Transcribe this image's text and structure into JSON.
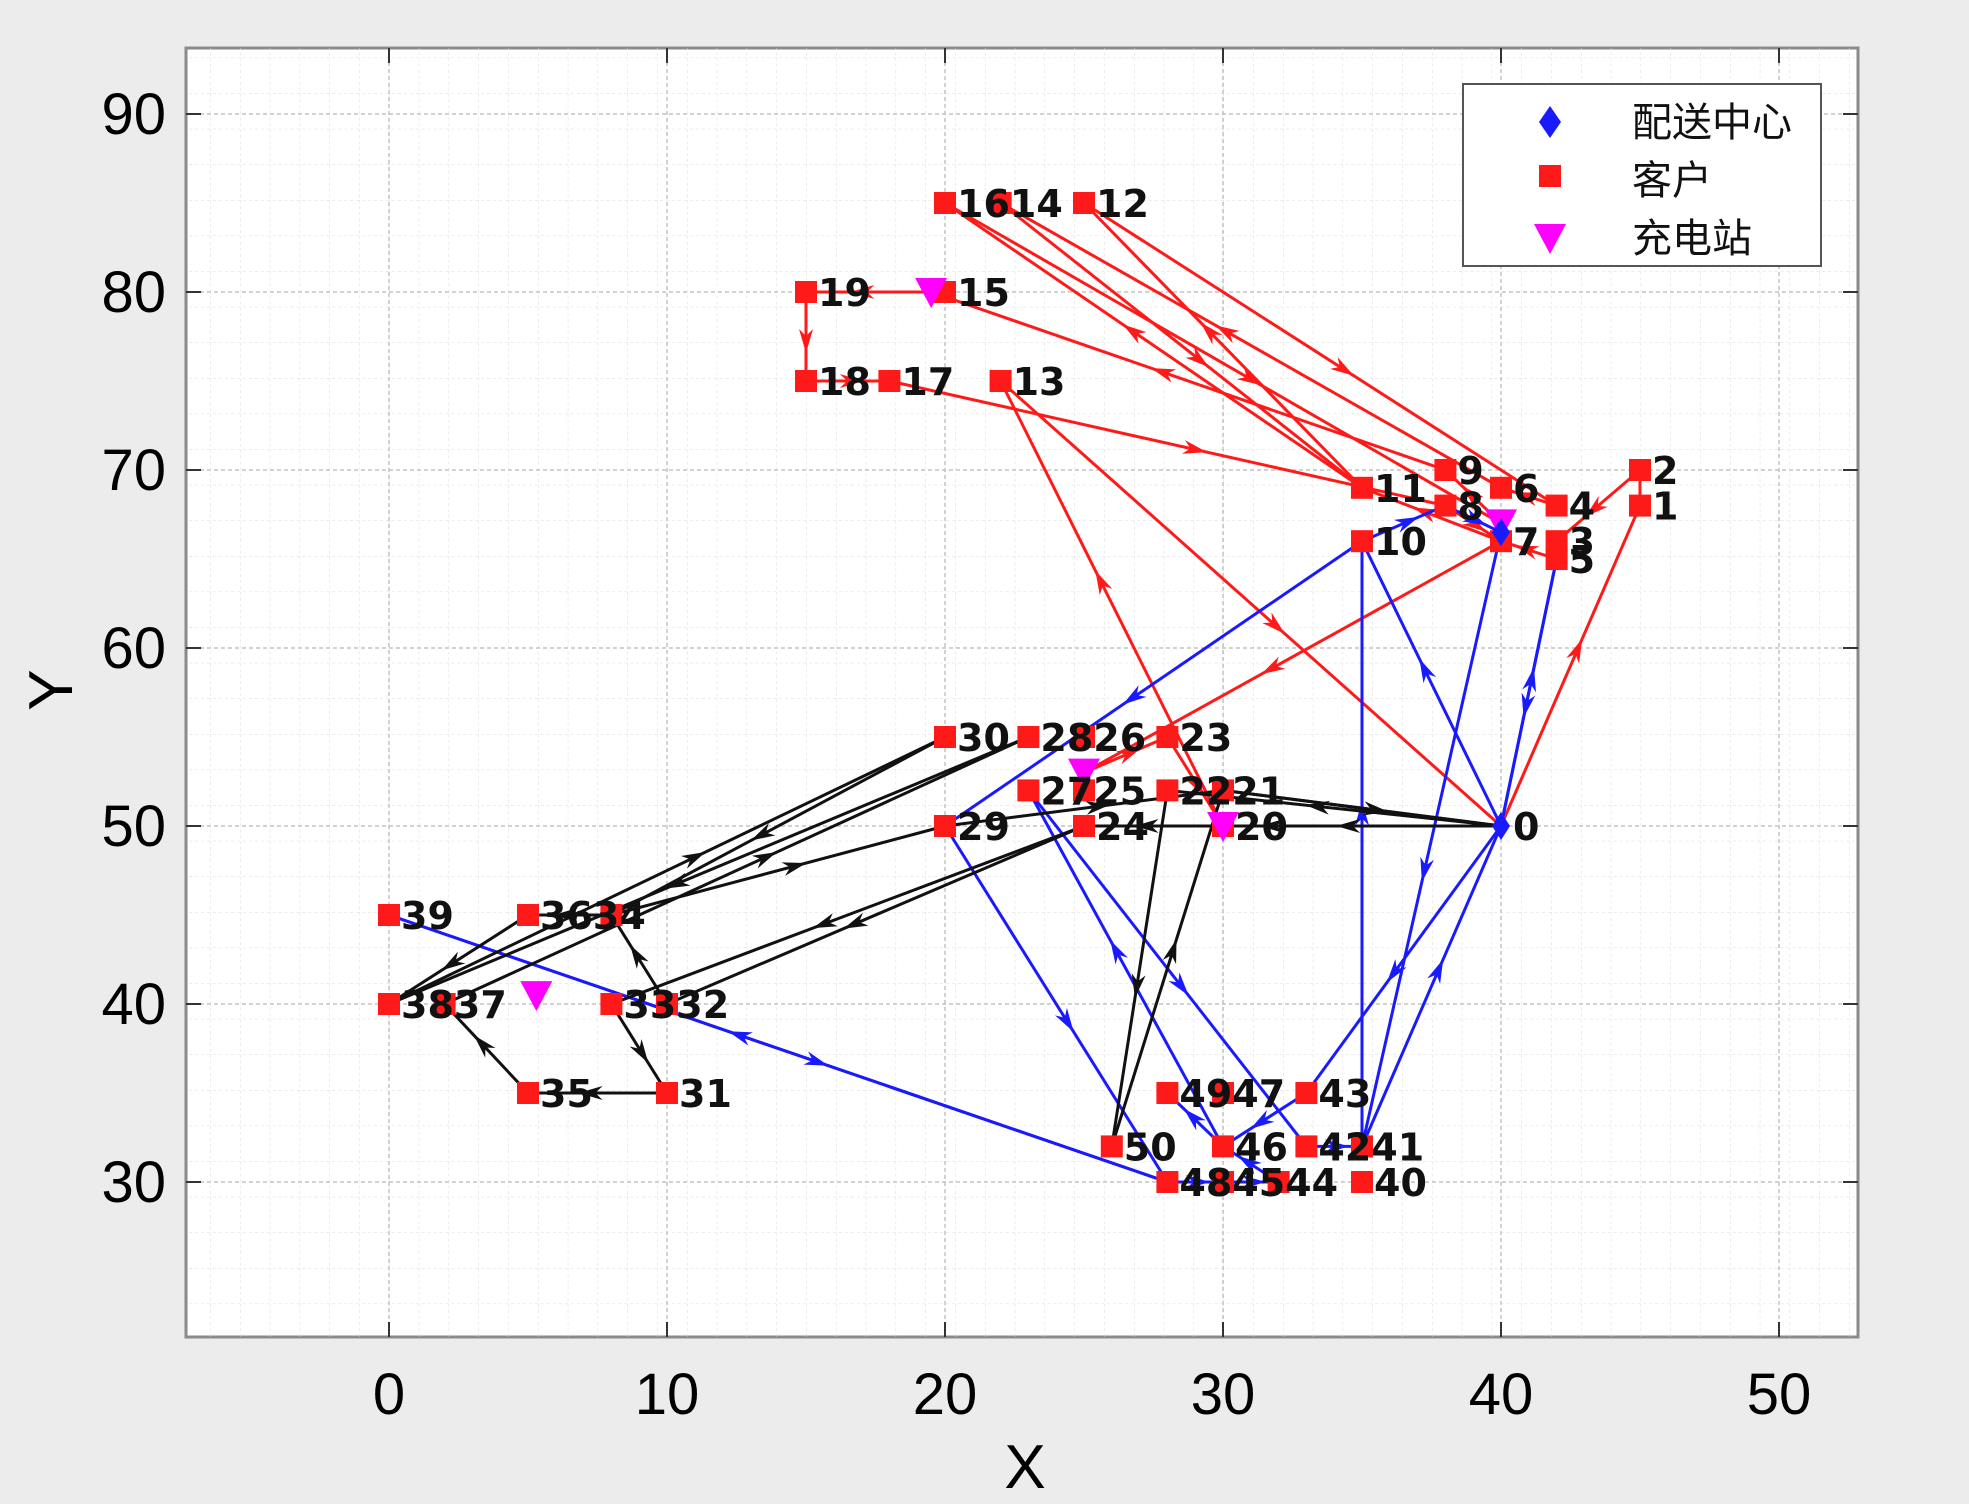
{
  "chart_data": {
    "type": "scatter",
    "xlabel": "X",
    "ylabel": "Y",
    "xlim": [
      -7.5,
      52
    ],
    "ylim": [
      21,
      94
    ],
    "xticks": [
      0,
      10,
      20,
      30,
      40,
      50
    ],
    "yticks": [
      30,
      40,
      50,
      60,
      70,
      80,
      90
    ],
    "grid": true,
    "legend_position": "top-right",
    "legend": [
      {
        "label": "配送中心",
        "marker": "diamond",
        "color": "#1a1aff"
      },
      {
        "label": "客户",
        "marker": "square",
        "color": "#ff1a1a"
      },
      {
        "label": "充电站",
        "marker": "triangle-down",
        "color": "#ff00ff"
      }
    ],
    "depot": {
      "id": "0",
      "x": 40,
      "y": 50
    },
    "depot_near_6": {
      "x": 40,
      "y": 66.5
    },
    "customers": [
      {
        "id": "1",
        "x": 45,
        "y": 68
      },
      {
        "id": "2",
        "x": 45,
        "y": 70
      },
      {
        "id": "3",
        "x": 42,
        "y": 66
      },
      {
        "id": "4",
        "x": 42,
        "y": 68
      },
      {
        "id": "5",
        "x": 42,
        "y": 65
      },
      {
        "id": "6",
        "x": 40,
        "y": 69
      },
      {
        "id": "7",
        "x": 40,
        "y": 66
      },
      {
        "id": "8",
        "x": 38,
        "y": 68
      },
      {
        "id": "9",
        "x": 38,
        "y": 70
      },
      {
        "id": "10",
        "x": 35,
        "y": 66
      },
      {
        "id": "11",
        "x": 35,
        "y": 69
      },
      {
        "id": "12",
        "x": 25,
        "y": 85
      },
      {
        "id": "13",
        "x": 22,
        "y": 75
      },
      {
        "id": "14",
        "x": 22,
        "y": 85
      },
      {
        "id": "15",
        "x": 20,
        "y": 80
      },
      {
        "id": "16",
        "x": 20,
        "y": 85
      },
      {
        "id": "17",
        "x": 18,
        "y": 75
      },
      {
        "id": "18",
        "x": 15,
        "y": 75
      },
      {
        "id": "19",
        "x": 15,
        "y": 80
      },
      {
        "id": "20",
        "x": 30,
        "y": 50
      },
      {
        "id": "21",
        "x": 30,
        "y": 52
      },
      {
        "id": "22",
        "x": 28,
        "y": 52
      },
      {
        "id": "23",
        "x": 28,
        "y": 55
      },
      {
        "id": "24",
        "x": 25,
        "y": 50
      },
      {
        "id": "25",
        "x": 25,
        "y": 52
      },
      {
        "id": "26",
        "x": 25,
        "y": 55
      },
      {
        "id": "27",
        "x": 23,
        "y": 52
      },
      {
        "id": "28",
        "x": 23,
        "y": 55
      },
      {
        "id": "29",
        "x": 20,
        "y": 50
      },
      {
        "id": "30",
        "x": 20,
        "y": 55
      },
      {
        "id": "31",
        "x": 10,
        "y": 35
      },
      {
        "id": "32",
        "x": 10,
        "y": 40
      },
      {
        "id": "33",
        "x": 8,
        "y": 40
      },
      {
        "id": "34",
        "x": 8,
        "y": 45
      },
      {
        "id": "35",
        "x": 5,
        "y": 35
      },
      {
        "id": "36",
        "x": 5,
        "y": 45
      },
      {
        "id": "37",
        "x": 2,
        "y": 40
      },
      {
        "id": "38",
        "x": 0,
        "y": 40
      },
      {
        "id": "39",
        "x": 0,
        "y": 45
      },
      {
        "id": "40",
        "x": 35,
        "y": 30
      },
      {
        "id": "41",
        "x": 35,
        "y": 32
      },
      {
        "id": "42",
        "x": 33,
        "y": 32
      },
      {
        "id": "43",
        "x": 33,
        "y": 35
      },
      {
        "id": "44",
        "x": 32,
        "y": 30
      },
      {
        "id": "45",
        "x": 30,
        "y": 30
      },
      {
        "id": "46",
        "x": 30,
        "y": 32
      },
      {
        "id": "47",
        "x": 30,
        "y": 35
      },
      {
        "id": "48",
        "x": 28,
        "y": 30
      },
      {
        "id": "49",
        "x": 28,
        "y": 35
      },
      {
        "id": "50",
        "x": 26,
        "y": 32
      }
    ],
    "point_labels": [
      {
        "text": "0",
        "x": 40,
        "y": 50
      },
      {
        "text": "1",
        "x": 45,
        "y": 68
      },
      {
        "text": "2",
        "x": 45,
        "y": 70
      },
      {
        "text": "3",
        "x": 42,
        "y": 66
      },
      {
        "text": "4",
        "x": 42,
        "y": 68
      },
      {
        "text": "5",
        "x": 42,
        "y": 65
      },
      {
        "text": "6",
        "x": 40,
        "y": 69
      },
      {
        "text": "7",
        "x": 40,
        "y": 66
      },
      {
        "text": "8",
        "x": 38,
        "y": 68
      },
      {
        "text": "9",
        "x": 38,
        "y": 70
      },
      {
        "text": "10",
        "x": 35,
        "y": 66
      },
      {
        "text": "11",
        "x": 35,
        "y": 69
      },
      {
        "text": "12",
        "x": 25,
        "y": 85
      },
      {
        "text": "13",
        "x": 22,
        "y": 75
      },
      {
        "text": "1614",
        "x": 20,
        "y": 85
      },
      {
        "text": "15",
        "x": 20,
        "y": 80
      },
      {
        "text": "17",
        "x": 18,
        "y": 75
      },
      {
        "text": "18",
        "x": 15,
        "y": 75
      },
      {
        "text": "19",
        "x": 15,
        "y": 80
      },
      {
        "text": "20",
        "x": 30,
        "y": 50
      },
      {
        "text": "2221",
        "x": 28,
        "y": 52
      },
      {
        "text": "23",
        "x": 28,
        "y": 55
      },
      {
        "text": "24",
        "x": 25,
        "y": 50
      },
      {
        "text": "2725",
        "x": 23,
        "y": 52
      },
      {
        "text": "2826",
        "x": 23,
        "y": 55
      },
      {
        "text": "29",
        "x": 20,
        "y": 50
      },
      {
        "text": "30",
        "x": 20,
        "y": 55
      },
      {
        "text": "31",
        "x": 10,
        "y": 35
      },
      {
        "text": "3332",
        "x": 8,
        "y": 40
      },
      {
        "text": "3634",
        "x": 5,
        "y": 45
      },
      {
        "text": "35",
        "x": 5,
        "y": 35
      },
      {
        "text": "3837",
        "x": 0,
        "y": 40
      },
      {
        "text": "39",
        "x": 0,
        "y": 45
      },
      {
        "text": "40",
        "x": 35,
        "y": 30
      },
      {
        "text": "4241",
        "x": 33,
        "y": 32
      },
      {
        "text": "43",
        "x": 33,
        "y": 35
      },
      {
        "text": "484544",
        "x": 28,
        "y": 30
      },
      {
        "text": "46",
        "x": 30,
        "y": 32
      },
      {
        "text": "4947",
        "x": 28,
        "y": 35
      },
      {
        "text": "50",
        "x": 26,
        "y": 32
      }
    ],
    "charging_stations": [
      {
        "x": 40,
        "y": 67
      },
      {
        "x": 19.5,
        "y": 80
      },
      {
        "x": 25,
        "y": 53
      },
      {
        "x": 30,
        "y": 50
      },
      {
        "x": 5.3,
        "y": 40.5
      }
    ],
    "routes": [
      {
        "name": "route-red",
        "color": "#ff1a1a",
        "points": [
          [
            40,
            50
          ],
          [
            45,
            68
          ],
          [
            45,
            70
          ],
          [
            42,
            66
          ],
          [
            42,
            65
          ],
          [
            40,
            66
          ],
          [
            35,
            69
          ],
          [
            25,
            85
          ],
          [
            42,
            68
          ],
          [
            40,
            69
          ],
          [
            22,
            85
          ],
          [
            35,
            69
          ],
          [
            20,
            85
          ],
          [
            40,
            67
          ],
          [
            38,
            70
          ],
          [
            19.5,
            80
          ],
          [
            15,
            80
          ],
          [
            15,
            75
          ],
          [
            18,
            75
          ],
          [
            38,
            68
          ],
          [
            40,
            66
          ],
          [
            25,
            53
          ],
          [
            28,
            55
          ],
          [
            30,
            50
          ],
          [
            22,
            75
          ],
          [
            40,
            50
          ]
        ]
      },
      {
        "name": "route-blue",
        "color": "#1a1aff",
        "points": [
          [
            40,
            50
          ],
          [
            42,
            65
          ],
          [
            40,
            50
          ],
          [
            35,
            66
          ],
          [
            20,
            50
          ],
          [
            28,
            30
          ],
          [
            0,
            45
          ],
          [
            28,
            30
          ],
          [
            30,
            30
          ],
          [
            32,
            30
          ],
          [
            30,
            32
          ],
          [
            23,
            52
          ],
          [
            33,
            32
          ],
          [
            35,
            32
          ],
          [
            35,
            66
          ],
          [
            38,
            68
          ],
          [
            40,
            66.5
          ],
          [
            35,
            32
          ],
          [
            40,
            50
          ],
          [
            33,
            35
          ],
          [
            30,
            32
          ],
          [
            28,
            35
          ]
        ]
      },
      {
        "name": "route-black",
        "color": "#111111",
        "points": [
          [
            40,
            50
          ],
          [
            28,
            52
          ],
          [
            26,
            32
          ],
          [
            30,
            52
          ],
          [
            40,
            50
          ],
          [
            25,
            50
          ],
          [
            8,
            40
          ],
          [
            10,
            35
          ],
          [
            5,
            35
          ],
          [
            2,
            40
          ],
          [
            23,
            55
          ],
          [
            0,
            40
          ],
          [
            20,
            55
          ],
          [
            8,
            45
          ],
          [
            20,
            50
          ],
          [
            30,
            52
          ],
          [
            40,
            50
          ],
          [
            30,
            50
          ],
          [
            25,
            50
          ],
          [
            10,
            40
          ],
          [
            8,
            45
          ],
          [
            5,
            45
          ],
          [
            0,
            40
          ]
        ]
      }
    ]
  }
}
